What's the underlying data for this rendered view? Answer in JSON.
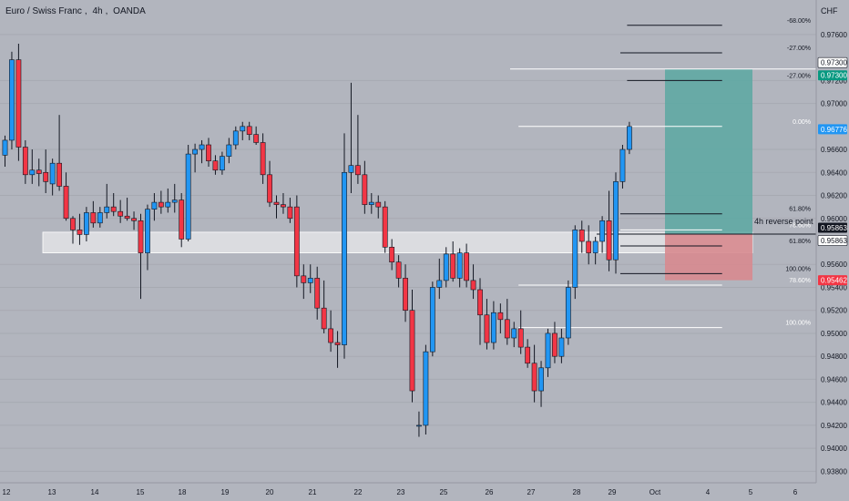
{
  "header": {
    "symbol": "Euro / Swiss Franc",
    "interval": "4h",
    "exchange": "OANDA",
    "currency": "CHF"
  },
  "colors": {
    "background": "#b2b5be",
    "up_candle": "#2196f3",
    "down_candle": "#f23645",
    "profit_zone": "#5fa8a3",
    "loss_zone": "#d78a8f",
    "zone_band": "#e2e3e6",
    "tag_green": "#089981",
    "tag_blue": "#2196f3",
    "tag_red": "#f23645",
    "tag_dark": "#131722"
  },
  "chart_data": {
    "type": "candlestick",
    "x_tick_labels": [
      "12",
      "13",
      "14",
      "15",
      "18",
      "19",
      "20",
      "21",
      "22",
      "23",
      "25",
      "26",
      "27",
      "28",
      "29",
      "Oct",
      "4",
      "5",
      "6"
    ],
    "y_axis": {
      "min": 0.937,
      "max": 0.979,
      "tick_labels": [
        "0.97600",
        "0.97200",
        "0.97000",
        "0.96600",
        "0.96400",
        "0.96200",
        "0.96000",
        "0.95600",
        "0.95400",
        "0.95200",
        "0.95000",
        "0.94800",
        "0.94600",
        "0.94400",
        "0.94200",
        "0.94000",
        "0.93800"
      ]
    },
    "candles": [
      {
        "o": 0.9655,
        "h": 0.9672,
        "l": 0.9645,
        "c": 0.9668
      },
      {
        "o": 0.9668,
        "h": 0.9745,
        "l": 0.966,
        "c": 0.9738
      },
      {
        "o": 0.9738,
        "h": 0.9752,
        "l": 0.965,
        "c": 0.9662
      },
      {
        "o": 0.9662,
        "h": 0.9668,
        "l": 0.963,
        "c": 0.9638
      },
      {
        "o": 0.9638,
        "h": 0.966,
        "l": 0.963,
        "c": 0.9642
      },
      {
        "o": 0.9642,
        "h": 0.9652,
        "l": 0.9628,
        "c": 0.9639
      },
      {
        "o": 0.964,
        "h": 0.966,
        "l": 0.9622,
        "c": 0.9632
      },
      {
        "o": 0.963,
        "h": 0.9652,
        "l": 0.962,
        "c": 0.9648
      },
      {
        "o": 0.9648,
        "h": 0.969,
        "l": 0.9624,
        "c": 0.9628
      },
      {
        "o": 0.9628,
        "h": 0.964,
        "l": 0.9598,
        "c": 0.96
      },
      {
        "o": 0.96,
        "h": 0.9602,
        "l": 0.9578,
        "c": 0.959
      },
      {
        "o": 0.959,
        "h": 0.9604,
        "l": 0.9577,
        "c": 0.9586
      },
      {
        "o": 0.9586,
        "h": 0.961,
        "l": 0.958,
        "c": 0.9605
      },
      {
        "o": 0.9605,
        "h": 0.9615,
        "l": 0.9592,
        "c": 0.9596
      },
      {
        "o": 0.9596,
        "h": 0.961,
        "l": 0.9592,
        "c": 0.9605
      },
      {
        "o": 0.9605,
        "h": 0.963,
        "l": 0.96,
        "c": 0.961
      },
      {
        "o": 0.961,
        "h": 0.9622,
        "l": 0.9602,
        "c": 0.9606
      },
      {
        "o": 0.9606,
        "h": 0.9616,
        "l": 0.9596,
        "c": 0.9602
      },
      {
        "o": 0.9602,
        "h": 0.9618,
        "l": 0.9598,
        "c": 0.96
      },
      {
        "o": 0.96,
        "h": 0.9606,
        "l": 0.959,
        "c": 0.9598
      },
      {
        "o": 0.9598,
        "h": 0.9604,
        "l": 0.953,
        "c": 0.957
      },
      {
        "o": 0.957,
        "h": 0.9612,
        "l": 0.9555,
        "c": 0.9608
      },
      {
        "o": 0.9608,
        "h": 0.9622,
        "l": 0.9598,
        "c": 0.9614
      },
      {
        "o": 0.9614,
        "h": 0.9624,
        "l": 0.9604,
        "c": 0.961
      },
      {
        "o": 0.961,
        "h": 0.9626,
        "l": 0.9605,
        "c": 0.9614
      },
      {
        "o": 0.9614,
        "h": 0.963,
        "l": 0.9605,
        "c": 0.9616
      },
      {
        "o": 0.9616,
        "h": 0.9622,
        "l": 0.9575,
        "c": 0.9582
      },
      {
        "o": 0.9582,
        "h": 0.9664,
        "l": 0.958,
        "c": 0.9656
      },
      {
        "o": 0.9656,
        "h": 0.9665,
        "l": 0.964,
        "c": 0.966
      },
      {
        "o": 0.966,
        "h": 0.9668,
        "l": 0.9648,
        "c": 0.9664
      },
      {
        "o": 0.9664,
        "h": 0.967,
        "l": 0.9645,
        "c": 0.965
      },
      {
        "o": 0.965,
        "h": 0.9655,
        "l": 0.9638,
        "c": 0.9642
      },
      {
        "o": 0.9642,
        "h": 0.9658,
        "l": 0.9638,
        "c": 0.9654
      },
      {
        "o": 0.9654,
        "h": 0.967,
        "l": 0.9648,
        "c": 0.9664
      },
      {
        "o": 0.9664,
        "h": 0.968,
        "l": 0.966,
        "c": 0.9676
      },
      {
        "o": 0.9676,
        "h": 0.9684,
        "l": 0.9668,
        "c": 0.968
      },
      {
        "o": 0.968,
        "h": 0.9684,
        "l": 0.9668,
        "c": 0.9673
      },
      {
        "o": 0.9673,
        "h": 0.968,
        "l": 0.9664,
        "c": 0.9666
      },
      {
        "o": 0.9666,
        "h": 0.9674,
        "l": 0.963,
        "c": 0.9638
      },
      {
        "o": 0.9638,
        "h": 0.965,
        "l": 0.961,
        "c": 0.9614
      },
      {
        "o": 0.9614,
        "h": 0.962,
        "l": 0.96,
        "c": 0.9612
      },
      {
        "o": 0.9612,
        "h": 0.9622,
        "l": 0.9604,
        "c": 0.961
      },
      {
        "o": 0.961,
        "h": 0.9618,
        "l": 0.9596,
        "c": 0.96
      },
      {
        "o": 0.961,
        "h": 0.962,
        "l": 0.954,
        "c": 0.955
      },
      {
        "o": 0.955,
        "h": 0.956,
        "l": 0.953,
        "c": 0.9544
      },
      {
        "o": 0.9544,
        "h": 0.956,
        "l": 0.9535,
        "c": 0.9548
      },
      {
        "o": 0.9548,
        "h": 0.9558,
        "l": 0.9512,
        "c": 0.9522
      },
      {
        "o": 0.9522,
        "h": 0.9546,
        "l": 0.95,
        "c": 0.9504
      },
      {
        "o": 0.9504,
        "h": 0.952,
        "l": 0.9484,
        "c": 0.9492
      },
      {
        "o": 0.9492,
        "h": 0.9502,
        "l": 0.947,
        "c": 0.949
      },
      {
        "o": 0.949,
        "h": 0.9674,
        "l": 0.9478,
        "c": 0.964
      },
      {
        "o": 0.964,
        "h": 0.9718,
        "l": 0.9622,
        "c": 0.9646
      },
      {
        "o": 0.9646,
        "h": 0.969,
        "l": 0.963,
        "c": 0.9638
      },
      {
        "o": 0.9638,
        "h": 0.965,
        "l": 0.9604,
        "c": 0.9612
      },
      {
        "o": 0.9612,
        "h": 0.9622,
        "l": 0.9604,
        "c": 0.9614
      },
      {
        "o": 0.9614,
        "h": 0.962,
        "l": 0.96,
        "c": 0.961
      },
      {
        "o": 0.961,
        "h": 0.9615,
        "l": 0.957,
        "c": 0.9575
      },
      {
        "o": 0.9575,
        "h": 0.9582,
        "l": 0.9555,
        "c": 0.9562
      },
      {
        "o": 0.9562,
        "h": 0.9568,
        "l": 0.954,
        "c": 0.9548
      },
      {
        "o": 0.9548,
        "h": 0.956,
        "l": 0.951,
        "c": 0.952
      },
      {
        "o": 0.952,
        "h": 0.9538,
        "l": 0.944,
        "c": 0.945
      },
      {
        "o": 0.942,
        "h": 0.9432,
        "l": 0.941,
        "c": 0.942
      },
      {
        "o": 0.942,
        "h": 0.949,
        "l": 0.9412,
        "c": 0.9484
      },
      {
        "o": 0.9484,
        "h": 0.9545,
        "l": 0.948,
        "c": 0.954
      },
      {
        "o": 0.954,
        "h": 0.9565,
        "l": 0.953,
        "c": 0.9546
      },
      {
        "o": 0.9546,
        "h": 0.9575,
        "l": 0.954,
        "c": 0.9569
      },
      {
        "o": 0.9569,
        "h": 0.958,
        "l": 0.9545,
        "c": 0.9548
      },
      {
        "o": 0.9548,
        "h": 0.9574,
        "l": 0.954,
        "c": 0.957
      },
      {
        "o": 0.957,
        "h": 0.9578,
        "l": 0.954,
        "c": 0.9546
      },
      {
        "o": 0.9546,
        "h": 0.956,
        "l": 0.953,
        "c": 0.9538
      },
      {
        "o": 0.9538,
        "h": 0.9548,
        "l": 0.949,
        "c": 0.9516
      },
      {
        "o": 0.9516,
        "h": 0.953,
        "l": 0.9486,
        "c": 0.9492
      },
      {
        "o": 0.9492,
        "h": 0.9528,
        "l": 0.9486,
        "c": 0.9518
      },
      {
        "o": 0.9518,
        "h": 0.9526,
        "l": 0.95,
        "c": 0.9512
      },
      {
        "o": 0.9512,
        "h": 0.953,
        "l": 0.949,
        "c": 0.9496
      },
      {
        "o": 0.9496,
        "h": 0.951,
        "l": 0.9488,
        "c": 0.9504
      },
      {
        "o": 0.9504,
        "h": 0.952,
        "l": 0.9482,
        "c": 0.9488
      },
      {
        "o": 0.9488,
        "h": 0.9495,
        "l": 0.947,
        "c": 0.9474
      },
      {
        "o": 0.9474,
        "h": 0.949,
        "l": 0.944,
        "c": 0.945
      },
      {
        "o": 0.945,
        "h": 0.9476,
        "l": 0.9436,
        "c": 0.947
      },
      {
        "o": 0.947,
        "h": 0.9504,
        "l": 0.9462,
        "c": 0.95
      },
      {
        "o": 0.95,
        "h": 0.951,
        "l": 0.9474,
        "c": 0.948
      },
      {
        "o": 0.948,
        "h": 0.9504,
        "l": 0.9474,
        "c": 0.9496
      },
      {
        "o": 0.9496,
        "h": 0.9546,
        "l": 0.949,
        "c": 0.954
      },
      {
        "o": 0.954,
        "h": 0.9594,
        "l": 0.953,
        "c": 0.959
      },
      {
        "o": 0.959,
        "h": 0.9598,
        "l": 0.957,
        "c": 0.958
      },
      {
        "o": 0.958,
        "h": 0.9594,
        "l": 0.956,
        "c": 0.957
      },
      {
        "o": 0.957,
        "h": 0.9584,
        "l": 0.956,
        "c": 0.958
      },
      {
        "o": 0.958,
        "h": 0.9602,
        "l": 0.957,
        "c": 0.9598
      },
      {
        "o": 0.9598,
        "h": 0.9624,
        "l": 0.9554,
        "c": 0.9564
      },
      {
        "o": 0.9564,
        "h": 0.964,
        "l": 0.9552,
        "c": 0.9632
      },
      {
        "o": 0.9632,
        "h": 0.9664,
        "l": 0.9626,
        "c": 0.966
      },
      {
        "o": 0.966,
        "h": 0.9684,
        "l": 0.9656,
        "c": 0.968
      }
    ],
    "zone_band": {
      "from": 0.957,
      "to": 0.9588
    },
    "position": {
      "entry": 0.95863,
      "target": 0.973,
      "stop": 0.95462
    },
    "price_tags": [
      {
        "value": 0.973,
        "label": "0.97300",
        "style": "outline"
      },
      {
        "value": 0.973,
        "label": "0.97300",
        "style": "green"
      },
      {
        "value": 0.96776,
        "label": "0.96776",
        "style": "blue"
      },
      {
        "value": 0.95863,
        "label": "0.95863",
        "style": "dark"
      },
      {
        "value": 0.95863,
        "label": "0.95863",
        "style": "outline"
      },
      {
        "value": 0.95462,
        "label": "0.95462",
        "style": "red"
      }
    ],
    "fib_levels": [
      {
        "label": "-68.00%",
        "value": 0.9768,
        "from_bar": 92,
        "to_bar": 106
      },
      {
        "label": "-27.00%",
        "value": 0.9744,
        "from_bar": 91,
        "to_bar": 106
      },
      {
        "label": "-27.00%",
        "value": 0.972,
        "from_bar": 92,
        "to_bar": 106
      },
      {
        "label": "0.00%",
        "value": 0.968,
        "from_bar": 76,
        "to_bar": 106
      },
      {
        "label": "61.80%",
        "value": 0.9604,
        "from_bar": 91,
        "to_bar": 106
      },
      {
        "label": "78.60%",
        "value": 0.959,
        "from_bar": 91,
        "to_bar": 106
      },
      {
        "label": "61.80%",
        "value": 0.9576,
        "from_bar": 91,
        "to_bar": 106
      },
      {
        "label": "100.00%",
        "value": 0.9552,
        "from_bar": 91,
        "to_bar": 106
      },
      {
        "label": "78.60%",
        "value": 0.9542,
        "from_bar": 76,
        "to_bar": 106
      },
      {
        "label": "100.00%",
        "value": 0.9505,
        "from_bar": 76,
        "to_bar": 106
      }
    ],
    "annotations": [
      {
        "text": "4h reverse point",
        "value": 0.9592
      }
    ]
  }
}
